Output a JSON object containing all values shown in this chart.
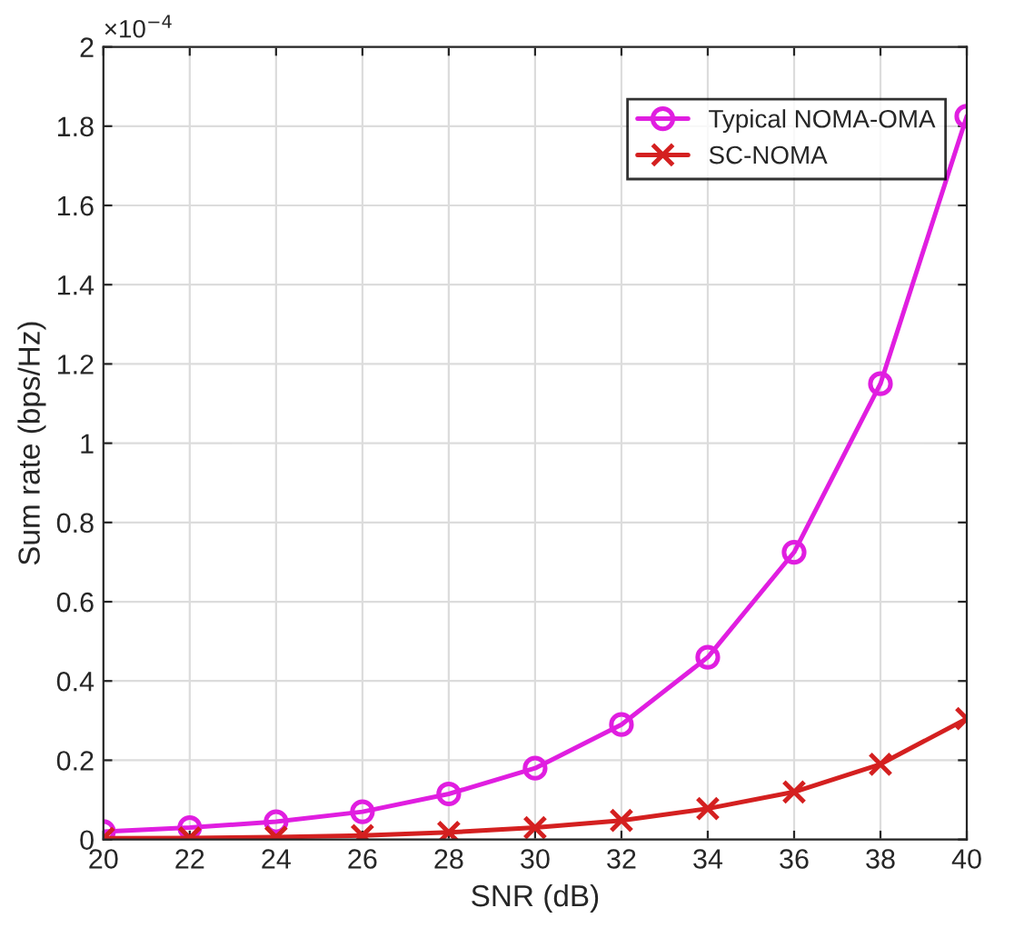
{
  "chart_data": {
    "type": "line",
    "xlabel": "SNR (dB)",
    "ylabel": "Sum rate (bps/Hz)",
    "annotations": [
      "×10$^{−4}$"
    ],
    "x": [
      20,
      22,
      24,
      26,
      28,
      30,
      32,
      34,
      36,
      38,
      40
    ],
    "series": [
      {
        "name": "Typical NOMA-OMA",
        "color": "#e01ee0",
        "marker": "circle",
        "values": [
          0.02,
          0.03,
          0.045,
          0.07,
          0.115,
          0.18,
          0.29,
          0.46,
          0.725,
          1.15,
          1.825
        ]
      },
      {
        "name": "SC-NOMA",
        "color": "#d42020",
        "marker": "cross",
        "values": [
          0.003,
          0.004,
          0.006,
          0.01,
          0.018,
          0.03,
          0.048,
          0.078,
          0.12,
          0.19,
          0.305
        ]
      }
    ],
    "xlim": [
      20,
      40
    ],
    "xticks": [
      20,
      22,
      24,
      26,
      28,
      30,
      32,
      34,
      36,
      38,
      40
    ],
    "ylim": [
      0,
      2
    ],
    "yticks": [
      0,
      0.2,
      0.4,
      0.6,
      0.8,
      1,
      1.2,
      1.4,
      1.6,
      1.8,
      2
    ],
    "grid": true,
    "legend": "top right",
    "line_style": "solid"
  }
}
